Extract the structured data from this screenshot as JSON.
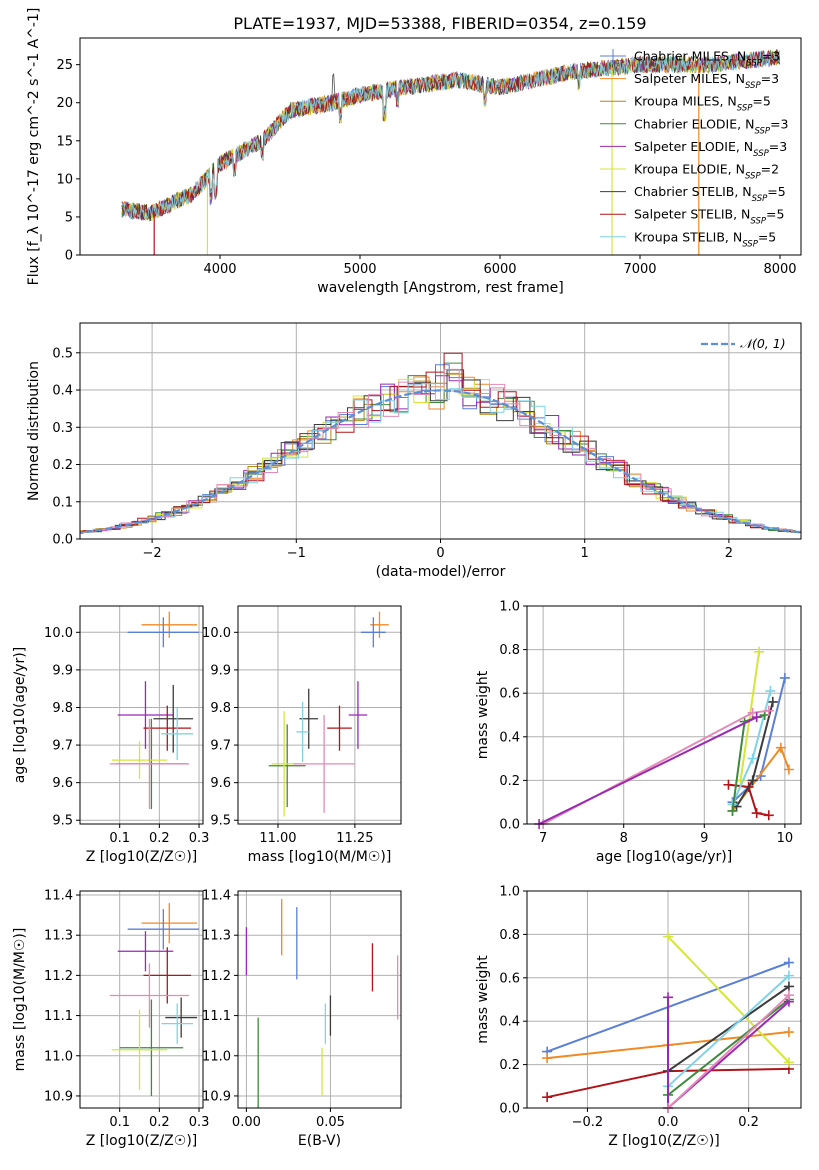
{
  "page": {
    "title": "PLATE=1937, MJD=53388, FIBERID=0354, z=0.159"
  },
  "colors": {
    "Chabrier MILES": "#5b7fd6",
    "Salpeter MILES": "#f08a24",
    "Kroupa MILES": "#b8860b",
    "Chabrier ELODIE": "#3d8a3d",
    "Salpeter ELODIE": "#9b28b5",
    "Kroupa ELODIE": "#d5e63a",
    "Chabrier STELIB": "#3b3b3b",
    "Salpeter STELIB": "#b0151a",
    "Kroupa STELIB": "#7fd3e6",
    "extra": "#e48ab8"
  },
  "chart_data": [
    {
      "id": "spectrum",
      "type": "line",
      "title": "PLATE=1937, MJD=53388, FIBERID=0354, z=0.159",
      "xlabel": "wavelength [Angstrom, rest frame]",
      "ylabel": "Flux [f_λ 10^-17 erg cm^-2 s^-1 A^-1]",
      "xlim": [
        3000,
        8150
      ],
      "ylim": [
        0,
        28.5
      ],
      "xticks": [
        4000,
        5000,
        6000,
        7000,
        8000
      ],
      "yticks": [
        0,
        5,
        10,
        15,
        20,
        25
      ],
      "legend_position": "top-right",
      "series": [
        {
          "name": "Chabrier MILES, N_SSP=3",
          "color": "#5b7fd6"
        },
        {
          "name": "Salpeter MILES, N_SSP=3",
          "color": "#f08a24"
        },
        {
          "name": "Kroupa MILES, N_SSP=5",
          "color": "#b8860b"
        },
        {
          "name": "Chabrier ELODIE, N_SSP=3",
          "color": "#3d8a3d"
        },
        {
          "name": "Salpeter ELODIE, N_SSP=3",
          "color": "#9b28b5"
        },
        {
          "name": "Kroupa ELODIE, N_SSP=2",
          "color": "#d5e63a"
        },
        {
          "name": "Chabrier STELIB, N_SSP=5",
          "color": "#3b3b3b"
        },
        {
          "name": "Salpeter STELIB, N_SSP=5",
          "color": "#b0151a"
        },
        {
          "name": "Kroupa STELIB, N_SSP=5",
          "color": "#7fd3e6"
        }
      ],
      "continuum": [
        [
          3300,
          6
        ],
        [
          3500,
          5.5
        ],
        [
          3800,
          8
        ],
        [
          4000,
          12
        ],
        [
          4300,
          15
        ],
        [
          4500,
          19
        ],
        [
          4800,
          20
        ],
        [
          5000,
          21
        ],
        [
          5300,
          22
        ],
        [
          5700,
          23
        ],
        [
          6000,
          22
        ],
        [
          6500,
          24
        ],
        [
          7000,
          25
        ],
        [
          7500,
          25
        ],
        [
          8000,
          26
        ]
      ]
    },
    {
      "id": "residuals",
      "type": "histogram",
      "xlabel": "(data-model)/error",
      "ylabel": "Normed distribution",
      "xlim": [
        -2.5,
        2.5
      ],
      "ylim": [
        0,
        0.58
      ],
      "xticks": [
        -2,
        -1,
        0,
        1,
        2
      ],
      "yticks": [
        0.0,
        0.1,
        0.2,
        0.3,
        0.4,
        0.5
      ],
      "legend": "𝒩(0, 1)",
      "legend_position": "top-right",
      "grid": true
    },
    {
      "id": "age-vs-Z",
      "type": "errorbar",
      "xlabel": "Z [log10(Z/Z☉)]",
      "ylabel": "age  [log10(age/yr)]",
      "xlim": [
        0.0,
        0.31
      ],
      "ylim": [
        9.49,
        10.07
      ],
      "xticks": [
        0.1,
        0.2,
        0.3
      ],
      "yticks": [
        9.5,
        9.6,
        9.7,
        9.8,
        9.9,
        10.0
      ],
      "grid": true,
      "points": [
        {
          "x": 0.225,
          "y": 10.02,
          "xerr": 0.07,
          "yerr": 0.035,
          "color": "#f08a24"
        },
        {
          "x": 0.21,
          "y": 10.0,
          "xerr": 0.09,
          "yerr": 0.04,
          "color": "#5b7fd6"
        },
        {
          "x": 0.165,
          "y": 9.78,
          "xerr": 0.07,
          "yerr": 0.09,
          "color": "#9b28b5"
        },
        {
          "x": 0.235,
          "y": 9.77,
          "xerr": 0.05,
          "yerr": 0.09,
          "color": "#3b3b3b"
        },
        {
          "x": 0.22,
          "y": 9.745,
          "xerr": 0.06,
          "yerr": 0.06,
          "color": "#b0151a"
        },
        {
          "x": 0.18,
          "y": 9.65,
          "xerr": 0.09,
          "yerr": 0.12,
          "color": "#3d8a3d"
        },
        {
          "x": 0.15,
          "y": 9.66,
          "xerr": 0.07,
          "yerr": 0.05,
          "color": "#d5e63a"
        },
        {
          "x": 0.175,
          "y": 9.65,
          "xerr": 0.1,
          "yerr": 0.12,
          "color": "#e48ab8"
        },
        {
          "x": 0.245,
          "y": 9.73,
          "xerr": 0.04,
          "yerr": 0.07,
          "color": "#7fd3e6"
        }
      ]
    },
    {
      "id": "age-vs-mass",
      "type": "errorbar",
      "xlabel": "mass [log10(M/M☉)]",
      "ylabel": "",
      "xlim": [
        10.87,
        11.4
      ],
      "ylim": [
        9.49,
        10.07
      ],
      "xticks": [
        11.0,
        11.25
      ],
      "tick_labels": [
        "11.00",
        "11.25"
      ],
      "yticks": [
        9.5,
        9.6,
        9.7,
        9.8,
        9.9,
        10.0
      ],
      "grid": true,
      "points": [
        {
          "x": 11.33,
          "y": 10.02,
          "xerr": 0.03,
          "yerr": 0.035,
          "color": "#f08a24"
        },
        {
          "x": 11.31,
          "y": 10.0,
          "xerr": 0.04,
          "yerr": 0.04,
          "color": "#5b7fd6"
        },
        {
          "x": 11.26,
          "y": 9.78,
          "xerr": 0.03,
          "yerr": 0.09,
          "color": "#9b28b5"
        },
        {
          "x": 11.1,
          "y": 9.77,
          "xerr": 0.03,
          "yerr": 0.08,
          "color": "#3b3b3b"
        },
        {
          "x": 11.2,
          "y": 9.745,
          "xerr": 0.04,
          "yerr": 0.06,
          "color": "#b0151a"
        },
        {
          "x": 11.03,
          "y": 9.645,
          "xerr": 0.06,
          "yerr": 0.11,
          "color": "#3d8a3d"
        },
        {
          "x": 11.02,
          "y": 9.65,
          "xerr": 0.04,
          "yerr": 0.14,
          "color": "#d5e63a"
        },
        {
          "x": 11.15,
          "y": 9.65,
          "xerr": 0.1,
          "yerr": 0.13,
          "color": "#e48ab8"
        },
        {
          "x": 11.08,
          "y": 9.735,
          "xerr": 0.02,
          "yerr": 0.08,
          "color": "#7fd3e6"
        }
      ]
    },
    {
      "id": "massweight-vs-age",
      "type": "line",
      "xlabel": "age  [log10(age/yr)]",
      "ylabel": "mass weight",
      "xlim": [
        6.8,
        10.2
      ],
      "ylim": [
        0.0,
        1.0
      ],
      "xticks": [
        7,
        8,
        9,
        10
      ],
      "yticks": [
        0.0,
        0.2,
        0.4,
        0.6,
        0.8,
        1.0
      ],
      "grid": true,
      "series": [
        {
          "color": "#5b7fd6",
          "x": [
            9.35,
            9.7,
            10.0
          ],
          "y": [
            0.1,
            0.22,
            0.67
          ]
        },
        {
          "color": "#f08a24",
          "x": [
            9.35,
            9.95,
            10.05
          ],
          "y": [
            0.06,
            0.35,
            0.25
          ]
        },
        {
          "color": "#d5e63a",
          "x": [
            9.45,
            9.68
          ],
          "y": [
            0.2,
            0.79
          ]
        },
        {
          "color": "#b0151a",
          "x": [
            9.3,
            9.55,
            9.65,
            9.8
          ],
          "y": [
            0.18,
            0.17,
            0.05,
            0.04
          ]
        },
        {
          "color": "#3b3b3b",
          "x": [
            9.4,
            9.6,
            9.85
          ],
          "y": [
            0.08,
            0.2,
            0.56
          ]
        },
        {
          "color": "#7fd3e6",
          "x": [
            9.35,
            9.6,
            9.82
          ],
          "y": [
            0.09,
            0.3,
            0.61
          ]
        },
        {
          "color": "#3d8a3d",
          "x": [
            9.35,
            9.5,
            9.75
          ],
          "y": [
            0.06,
            0.47,
            0.5
          ]
        },
        {
          "color": "#e48ab8",
          "x": [
            7.0,
            9.6,
            9.8
          ],
          "y": [
            0.0,
            0.51,
            0.52
          ]
        },
        {
          "color": "#9b28b5",
          "x": [
            6.95,
            9.65
          ],
          "y": [
            0.0,
            0.49
          ]
        }
      ]
    },
    {
      "id": "mass-vs-Z",
      "type": "errorbar",
      "xlabel": "Z [log10(Z/Z☉)]",
      "ylabel": "mass [log10(M/M☉)]",
      "xlim": [
        0.0,
        0.31
      ],
      "ylim": [
        10.87,
        11.41
      ],
      "xticks": [
        0.1,
        0.2,
        0.3
      ],
      "yticks": [
        10.9,
        11.0,
        11.1,
        11.2,
        11.3,
        11.4
      ],
      "grid": true,
      "points": [
        {
          "x": 0.225,
          "y": 11.33,
          "xerr": 0.07,
          "yerr": 0.05,
          "color": "#f08a24"
        },
        {
          "x": 0.21,
          "y": 11.315,
          "xerr": 0.09,
          "yerr": 0.05,
          "color": "#5b7fd6"
        },
        {
          "x": 0.165,
          "y": 11.26,
          "xerr": 0.07,
          "yerr": 0.05,
          "color": "#9b28b5"
        },
        {
          "x": 0.22,
          "y": 11.2,
          "xerr": 0.06,
          "yerr": 0.07,
          "color": "#b0151a"
        },
        {
          "x": 0.175,
          "y": 11.15,
          "xerr": 0.1,
          "yerr": 0.08,
          "color": "#e48ab8"
        },
        {
          "x": 0.255,
          "y": 11.095,
          "xerr": 0.04,
          "yerr": 0.05,
          "color": "#3b3b3b"
        },
        {
          "x": 0.245,
          "y": 11.08,
          "xerr": 0.04,
          "yerr": 0.05,
          "color": "#7fd3e6"
        },
        {
          "x": 0.18,
          "y": 11.02,
          "xerr": 0.08,
          "yerr": 0.12,
          "color": "#3d8a3d"
        },
        {
          "x": 0.15,
          "y": 11.015,
          "xerr": 0.07,
          "yerr": 0.1,
          "color": "#d5e63a"
        }
      ]
    },
    {
      "id": "mass-vs-EBV",
      "type": "errorbar",
      "xlabel": "E(B-V)",
      "ylabel": "",
      "xlim": [
        -0.005,
        0.092
      ],
      "ylim": [
        10.87,
        11.41
      ],
      "xticks": [
        0.0,
        0.05
      ],
      "tick_labels": [
        "0.00",
        "0.05"
      ],
      "yticks": [
        10.9,
        11.0,
        11.1,
        11.2,
        11.3,
        11.4
      ],
      "grid": true,
      "points": [
        {
          "x": 0.0,
          "y": 11.26,
          "yerr": 0.06,
          "color": "#9b28b5"
        },
        {
          "x": 0.021,
          "y": 11.32,
          "yerr": 0.07,
          "color": "#f08a24"
        },
        {
          "x": 0.03,
          "y": 11.28,
          "yerr": 0.09,
          "color": "#5b7fd6"
        },
        {
          "x": 0.007,
          "y": 10.975,
          "yerr": 0.12,
          "color": "#3d8a3d"
        },
        {
          "x": 0.05,
          "y": 11.1,
          "yerr": 0.05,
          "color": "#3b3b3b"
        },
        {
          "x": 0.047,
          "y": 11.08,
          "yerr": 0.05,
          "color": "#7fd3e6"
        },
        {
          "x": 0.045,
          "y": 10.96,
          "yerr": 0.06,
          "color": "#d5e63a"
        },
        {
          "x": 0.075,
          "y": 11.22,
          "yerr": 0.06,
          "color": "#b0151a"
        },
        {
          "x": 0.09,
          "y": 11.17,
          "yerr": 0.08,
          "color": "#e48ab8"
        }
      ]
    },
    {
      "id": "massweight-vs-Z",
      "type": "line",
      "xlabel": "Z [log10(Z/Z☉)]",
      "ylabel": "mass weight",
      "xlim": [
        -0.35,
        0.33
      ],
      "ylim": [
        0.0,
        1.0
      ],
      "xticks": [
        -0.2,
        0.0,
        0.2
      ],
      "tick_labels": [
        "−0.2",
        "0.0",
        "0.2"
      ],
      "yticks": [
        0.0,
        0.2,
        0.4,
        0.6,
        0.8,
        1.0
      ],
      "grid": true,
      "series": [
        {
          "color": "#5b7fd6",
          "x": [
            -0.3,
            0.3
          ],
          "y": [
            0.26,
            0.67
          ]
        },
        {
          "color": "#f08a24",
          "x": [
            -0.3,
            0.0,
            0.3
          ],
          "y": [
            0.23,
            0.29,
            0.35
          ]
        },
        {
          "color": "#b0151a",
          "x": [
            -0.3,
            0.0,
            0.3
          ],
          "y": [
            0.05,
            0.17,
            0.18
          ]
        },
        {
          "color": "#d5e63a",
          "x": [
            0.0,
            0.3
          ],
          "y": [
            0.79,
            0.21
          ]
        },
        {
          "color": "#3b3b3b",
          "x": [
            0.0,
            0.3
          ],
          "y": [
            0.17,
            0.56
          ]
        },
        {
          "color": "#7fd3e6",
          "x": [
            0.0,
            0.3
          ],
          "y": [
            0.1,
            0.61
          ]
        },
        {
          "color": "#3d8a3d",
          "x": [
            0.0,
            0.3
          ],
          "y": [
            0.06,
            0.5
          ]
        },
        {
          "color": "#9b28b5",
          "x": [
            0.0,
            0.0,
            0.3
          ],
          "y": [
            0.51,
            0.0,
            0.49
          ]
        },
        {
          "color": "#e48ab8",
          "x": [
            0.0,
            0.3
          ],
          "y": [
            0.0,
            0.52
          ]
        }
      ]
    }
  ]
}
